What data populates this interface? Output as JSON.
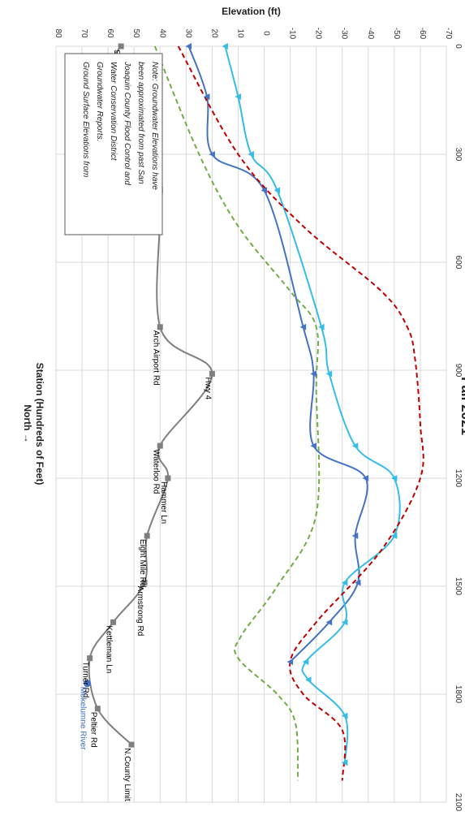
{
  "chart_data": {
    "type": "line",
    "title": "Fall 2021",
    "xlabel": "Station (Hundreds of Feet)",
    "xlabel_sub": "North →",
    "ylabel": "Elevation (ft)",
    "xlim": [
      0,
      2100
    ],
    "ylim": [
      -70,
      80
    ],
    "x_ticks": [
      "0",
      "300",
      "600",
      "900",
      "1200",
      "1500",
      "1800",
      "2100"
    ],
    "x_tick_values": [
      0,
      300,
      600,
      900,
      1200,
      1500,
      1800,
      2100
    ],
    "y_ticks": [
      "-70",
      "-60",
      "-50",
      "-40",
      "-30",
      "-20",
      "-10",
      "0",
      "10",
      "20",
      "30",
      "40",
      "50",
      "60",
      "70",
      "80"
    ],
    "y_tick_values": [
      -70,
      -60,
      -50,
      -40,
      -30,
      -20,
      -10,
      0,
      10,
      20,
      30,
      40,
      50,
      60,
      70,
      80
    ],
    "grid": true,
    "note": [
      "Note: Groundwater Elevations have",
      "been approximated from past San",
      "Joaquin County Flood Control and",
      "Water Conservation District",
      "Groundwater Reports.",
      "Ground Surface Elevations from"
    ],
    "series": [
      {
        "key": "ground",
        "color": "#7f7f7f",
        "style": "solid",
        "marker": "square",
        "points": [
          [
            0,
            55
          ],
          [
            140,
            67
          ],
          [
            300,
            47
          ],
          [
            400,
            40
          ],
          [
            780,
            40
          ],
          [
            910,
            20
          ],
          [
            1110,
            40
          ],
          [
            1200,
            37
          ],
          [
            1360,
            45
          ],
          [
            1490,
            46
          ],
          [
            1600,
            58
          ],
          [
            1700,
            67
          ],
          [
            1840,
            64
          ],
          [
            1940,
            51
          ]
        ]
      },
      {
        "key": "gw-dark",
        "color": "#4472c4",
        "style": "solid",
        "marker": "triangle",
        "points": [
          [
            0,
            29
          ],
          [
            140,
            22
          ],
          [
            300,
            20
          ],
          [
            400,
            0
          ],
          [
            780,
            -15
          ],
          [
            910,
            -19
          ],
          [
            1110,
            -19
          ],
          [
            1200,
            -39
          ],
          [
            1360,
            -35
          ],
          [
            1490,
            -36
          ],
          [
            1600,
            -25
          ],
          [
            1710,
            -10
          ]
        ]
      },
      {
        "key": "gw-light",
        "color": "#35bde8",
        "style": "solid",
        "marker": "triangle",
        "points": [
          [
            0,
            15
          ],
          [
            140,
            10
          ],
          [
            300,
            5
          ],
          [
            400,
            -5
          ],
          [
            780,
            -22
          ],
          [
            910,
            -25
          ],
          [
            1110,
            -35
          ],
          [
            1200,
            -50
          ],
          [
            1360,
            -50
          ],
          [
            1490,
            -31
          ],
          [
            1600,
            -31
          ],
          [
            1710,
            -16
          ],
          [
            1760,
            -17
          ],
          [
            1860,
            -31
          ],
          [
            1990,
            -31
          ]
        ]
      },
      {
        "key": "red-dashed",
        "color": "#c00000",
        "style": "dashed",
        "marker": "none",
        "points": [
          [
            0,
            33
          ],
          [
            300,
            10
          ],
          [
            500,
            -15
          ],
          [
            680,
            -45
          ],
          [
            780,
            -55
          ],
          [
            870,
            -58
          ],
          [
            1050,
            -60
          ],
          [
            1200,
            -60
          ],
          [
            1400,
            -45
          ],
          [
            1600,
            -20
          ],
          [
            1710,
            -10
          ],
          [
            1800,
            -15
          ],
          [
            1900,
            -30
          ],
          [
            2040,
            -30
          ]
        ]
      },
      {
        "key": "green-dashed",
        "color": "#70ad47",
        "style": "dashed",
        "marker": "none",
        "points": [
          [
            0,
            42
          ],
          [
            300,
            25
          ],
          [
            500,
            10
          ],
          [
            680,
            -10
          ],
          [
            780,
            -20
          ],
          [
            950,
            -20
          ],
          [
            1300,
            -20
          ],
          [
            1500,
            -5
          ],
          [
            1640,
            9
          ],
          [
            1700,
            10
          ],
          [
            1800,
            -5
          ],
          [
            1880,
            -12
          ],
          [
            2040,
            -13
          ]
        ]
      }
    ],
    "annotations": [
      {
        "text": "S.County Limit",
        "x": 0,
        "y": 55,
        "color": "#000000"
      },
      {
        "text": "Jack Tone rd",
        "x": 140,
        "y": 67,
        "color": "#000000"
      },
      {
        "text": "Austin Rd",
        "x": 300,
        "y": 47,
        "color": "#000000"
      },
      {
        "text": "Louise Ave",
        "x": 400,
        "y": 40,
        "color": "#000000"
      },
      {
        "text": "Arch Airport Rd",
        "x": 780,
        "y": 40,
        "color": "#000000"
      },
      {
        "text": "Hwy 4",
        "x": 910,
        "y": 20,
        "color": "#000000"
      },
      {
        "text": "Waterloo Rd",
        "x": 1110,
        "y": 40,
        "color": "#000000"
      },
      {
        "text": "Hammer Ln",
        "x": 1200,
        "y": 37,
        "color": "#000000"
      },
      {
        "text": "Eight Mile Rd",
        "x": 1360,
        "y": 45,
        "color": "#000000"
      },
      {
        "text": "Armstrong Rd",
        "x": 1490,
        "y": 46,
        "color": "#000000"
      },
      {
        "text": "Turner Rd",
        "x": 1700,
        "y": 67,
        "color": "#000000"
      },
      {
        "text": "Kettleman Ln",
        "x": 1600,
        "y": 58,
        "color": "#000000"
      },
      {
        "text": "Mokelumne River",
        "x": 1770,
        "y": 68,
        "color": "#4472c4"
      },
      {
        "text": "Peltier Rd",
        "x": 1840,
        "y": 64,
        "color": "#000000"
      },
      {
        "text": "N.County Limit",
        "x": 1940,
        "y": 51,
        "color": "#000000"
      }
    ],
    "highlight_point": {
      "x": 1770,
      "y": 68,
      "color": "#4472c4"
    }
  }
}
